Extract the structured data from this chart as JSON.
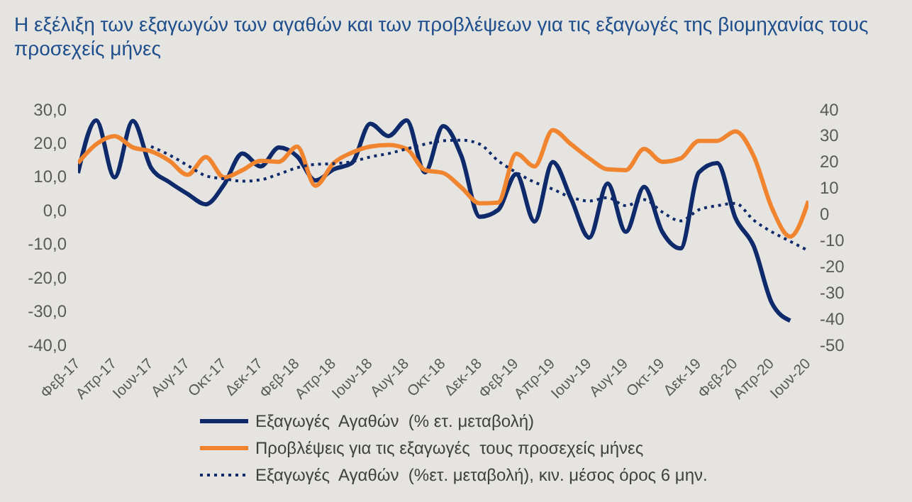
{
  "chart_data": {
    "type": "line",
    "title": "Η εξέλιξη των εξαγωγών των αγαθών και των προβλέψεων για τις εξαγωγές της βιομηχανίας τους προσεχείς μήνες",
    "categories": [
      "Φεβ-17",
      null,
      "Απρ-17",
      null,
      "Ιουν-17",
      null,
      "Αυγ-17",
      null,
      "Οκτ-17",
      null,
      "Δεκ-17",
      null,
      "Φεβ-18",
      null,
      "Απρ-18",
      null,
      "Ιουν-18",
      null,
      "Αυγ-18",
      null,
      "Οκτ-18",
      null,
      "Δεκ-18",
      null,
      "Φεβ-19",
      null,
      "Απρ-19",
      null,
      "Ιουν-19",
      null,
      "Αυγ-19",
      null,
      "Οκτ-19",
      null,
      "Δεκ-19",
      null,
      "Φεβ-20",
      null,
      "Απρ-20",
      null,
      "Ιουν-20"
    ],
    "series": [
      {
        "name": "Εξαγωγές  Αγαθών  (% ετ. μεταβολή)",
        "color": "#0e2a6b",
        "line_style": "solid",
        "values": [
          11,
          26.7,
          9.7,
          26.5,
          12.6,
          8.3,
          4.8,
          1.7,
          7.6,
          16.8,
          13,
          18.6,
          16,
          8.8,
          12.1,
          14,
          25.7,
          22,
          26.7,
          11.2,
          25,
          16,
          -2,
          0,
          10.7,
          -3.4,
          14.3,
          3.4,
          -8.2,
          7.9,
          -6.5,
          6.9,
          -6.5,
          -11.4,
          11.2,
          14,
          -2.3,
          -10.7,
          -27.7,
          -32.9,
          null
        ]
      },
      {
        "name": "Προβλέψεις για τις εξαγωγές  τους προσεχείς μήνες",
        "color": "#f0842f",
        "line_style": "solid",
        "axis": "y2",
        "values": [
          19.4,
          26.6,
          29.7,
          25.4,
          23.9,
          20.3,
          14.9,
          21.7,
          13.9,
          16.7,
          20.3,
          19.9,
          25.7,
          10.7,
          19.4,
          23.4,
          25.7,
          26.3,
          24.8,
          16.7,
          15.6,
          10,
          4,
          4.3,
          23,
          18.1,
          32,
          26.6,
          21.2,
          17,
          16.7,
          24.8,
          19.9,
          21.2,
          27.9,
          27.9,
          31.5,
          22.1,
          2.2,
          -8.7,
          4.9
        ]
      },
      {
        "name": "Εξαγωγές  Αγαθών  (%ετ. μεταβολή), κιν. μέσος όρος 6 μην.",
        "color": "#0e2a6b",
        "line_style": "dotted",
        "values": [
          null,
          null,
          null,
          null,
          18.9,
          16.4,
          13.3,
          10.2,
          9.3,
          8.6,
          9,
          10.7,
          12.6,
          13.6,
          13.8,
          14.4,
          15.8,
          16.8,
          18.2,
          19.6,
          20.6,
          20.8,
          19.6,
          14.7,
          11.2,
          8.3,
          6.2,
          3.8,
          2.7,
          3.7,
          1.3,
          3.1,
          -0.6,
          -3.2,
          0.1,
          1.3,
          2,
          -3,
          -6.5,
          -9.3,
          -12.1
        ]
      }
    ],
    "ylim": [
      -40,
      30
    ],
    "yticks": [
      {
        "value": -40,
        "label": "-40,0"
      },
      {
        "value": -30,
        "label": "-30,0"
      },
      {
        "value": -20,
        "label": "-20,0"
      },
      {
        "value": -10,
        "label": "-10,0"
      },
      {
        "value": 0,
        "label": "0,0"
      },
      {
        "value": 10,
        "label": "10,0"
      },
      {
        "value": 20,
        "label": "20,0"
      },
      {
        "value": 30,
        "label": "30,0"
      }
    ],
    "y2lim": [
      -50,
      40
    ],
    "y2ticks": [
      -50,
      -40,
      -30,
      -20,
      -10,
      0,
      10,
      20,
      30,
      40
    ],
    "legend": "bottom"
  }
}
